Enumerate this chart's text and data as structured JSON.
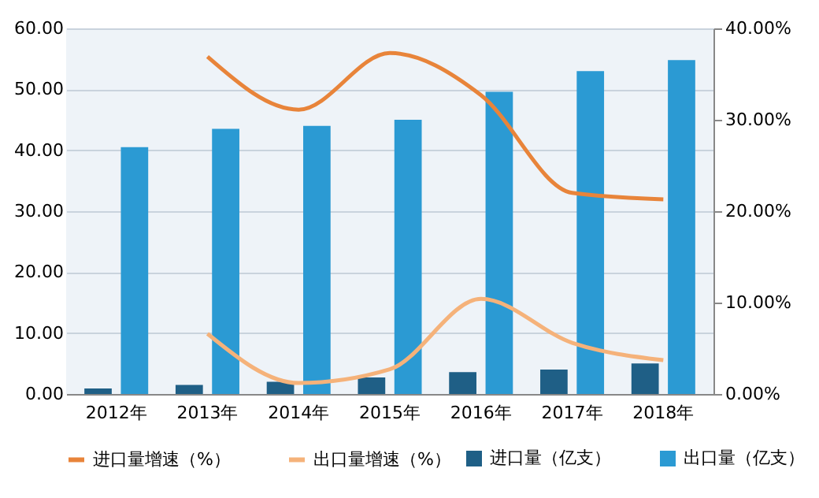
{
  "chart_data": {
    "type": "bar",
    "categories": [
      "2012年",
      "2013年",
      "2014年",
      "2015年",
      "2016年",
      "2017年",
      "2018年"
    ],
    "series": [
      {
        "name": "进口量（亿支）",
        "color": "#1f5f86",
        "values": [
          0.9,
          1.5,
          2.0,
          2.7,
          3.6,
          4.0,
          5.0
        ]
      },
      {
        "name": "出口量（亿支）",
        "color": "#2b9ad3",
        "values": [
          40.5,
          43.5,
          44.0,
          45.0,
          49.6,
          53.0,
          54.8
        ]
      },
      {
        "name": "进口量增速（%）",
        "type": "line",
        "axis": "y2",
        "color": "#e8843a",
        "values": [
          null,
          36.9,
          31.1,
          37.3,
          32.7,
          22.0,
          21.3
        ]
      },
      {
        "name": "出口量增速（%）",
        "type": "line",
        "axis": "y2",
        "color": "#f5b27a",
        "values": [
          null,
          6.6,
          1.2,
          2.7,
          10.4,
          5.6,
          3.7
        ]
      }
    ],
    "ylim": [
      0,
      60
    ],
    "yticks": [
      {
        "value": 0,
        "label": "0.00"
      },
      {
        "value": 10,
        "label": "10.00"
      },
      {
        "value": 20,
        "label": "20.00"
      },
      {
        "value": 30,
        "label": "30.00"
      },
      {
        "value": 40,
        "label": "40.00"
      },
      {
        "value": 50,
        "label": "50.00"
      },
      {
        "value": 60,
        "label": "60.00"
      }
    ],
    "y2lim": [
      0,
      40
    ],
    "y2ticks": [
      {
        "value": 0,
        "label": "0.00%"
      },
      {
        "value": 10,
        "label": "10.00%"
      },
      {
        "value": 20,
        "label": "20.00%"
      },
      {
        "value": 30,
        "label": "30.00%"
      },
      {
        "value": 40,
        "label": "40.00%"
      }
    ],
    "grid": "y",
    "legend": "bottom"
  }
}
